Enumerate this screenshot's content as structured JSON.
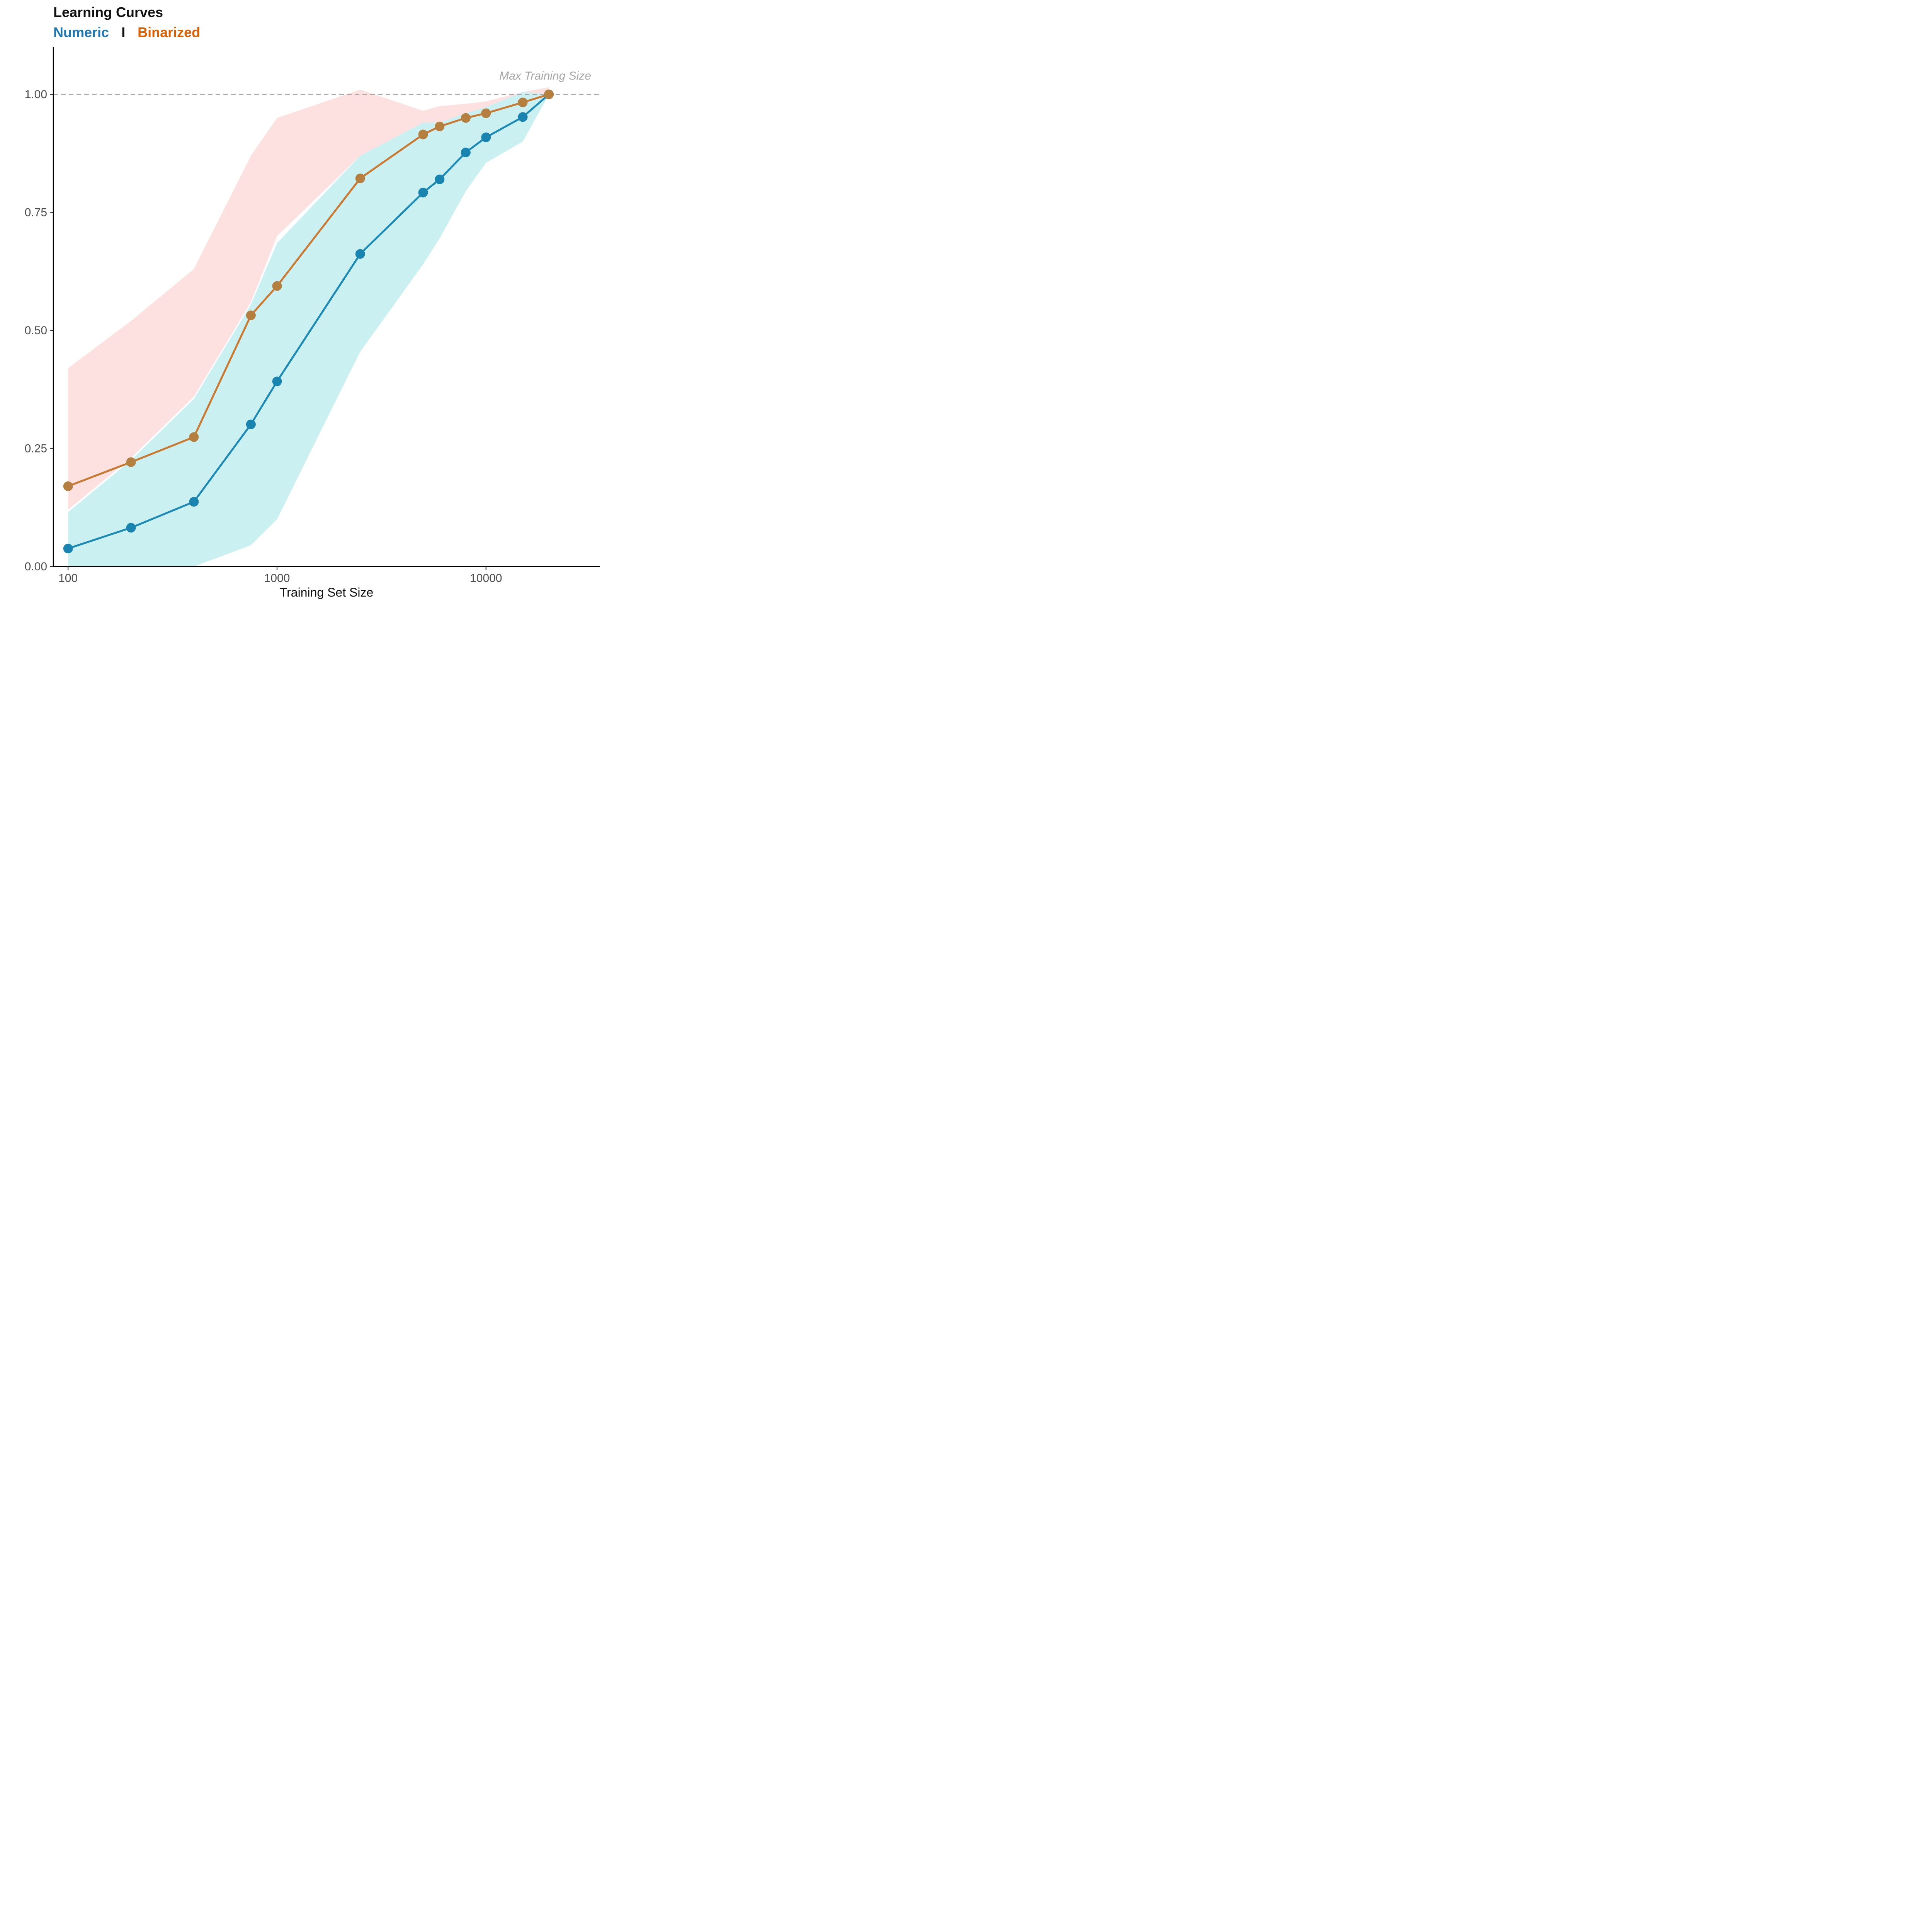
{
  "chart_data": {
    "type": "line",
    "title": "Learning Curves",
    "legend": {
      "items": [
        {
          "name": "Numeric",
          "color": "#1f78b4"
        },
        {
          "name": "Binarized",
          "color": "#d95f02"
        }
      ],
      "separator": "I",
      "placement": "subtitle"
    },
    "xlabel": "Training Set Size",
    "ylabel": "",
    "x_scale": "log",
    "xlim": [
      85,
      35000
    ],
    "ylim": [
      0,
      1.1
    ],
    "x_ticks": [
      {
        "value": 100,
        "label": "100"
      },
      {
        "value": 1000,
        "label": "1000"
      },
      {
        "value": 10000,
        "label": "10000"
      }
    ],
    "y_ticks": [
      {
        "value": 0,
        "label": "0.00"
      },
      {
        "value": 0.25,
        "label": "0.25"
      },
      {
        "value": 0.5,
        "label": "0.50"
      },
      {
        "value": 0.75,
        "label": "0.75"
      },
      {
        "value": 1.0,
        "label": "1.00"
      }
    ],
    "grid": false,
    "reference_line": {
      "y": 1.0,
      "label": "Max Training Size",
      "color": "#a6a6a6"
    },
    "series": [
      {
        "name": "Numeric",
        "line_color": "#1c8ab5",
        "point_color": "#1a84b0",
        "band_color": "#9ee3e6",
        "x": [
          100,
          200,
          400,
          750,
          1000,
          2500,
          5000,
          6000,
          8000,
          10000,
          15000,
          20000
        ],
        "values": [
          0.038,
          0.082,
          0.137,
          0.301,
          0.392,
          0.662,
          0.792,
          0.82,
          0.877,
          0.909,
          0.952,
          1.0
        ],
        "lower": [
          0.0,
          0.0,
          0.0,
          0.045,
          0.1,
          0.455,
          0.64,
          0.695,
          0.795,
          0.855,
          0.9,
          1.0
        ],
        "upper": [
          0.115,
          0.225,
          0.355,
          0.555,
          0.685,
          0.87,
          0.94,
          0.94,
          0.96,
          0.973,
          1.005,
          1.0
        ]
      },
      {
        "name": "Binarized",
        "line_color": "#c97a30",
        "point_color": "#b5803f",
        "band_color": "#f9c8c6",
        "x": [
          100,
          200,
          400,
          750,
          1000,
          2500,
          5000,
          6000,
          8000,
          10000,
          15000,
          20000
        ],
        "values": [
          0.17,
          0.221,
          0.274,
          0.532,
          0.594,
          0.822,
          0.915,
          0.932,
          0.95,
          0.96,
          0.983,
          1.0
        ],
        "lower": [
          0.12,
          0.23,
          0.36,
          0.56,
          0.7,
          0.87,
          0.94,
          0.94,
          0.96,
          0.973,
          1.005,
          1.0
        ],
        "upper": [
          0.42,
          0.52,
          0.63,
          0.87,
          0.95,
          1.01,
          0.965,
          0.975,
          0.98,
          0.985,
          1.005,
          1.015
        ]
      }
    ]
  }
}
